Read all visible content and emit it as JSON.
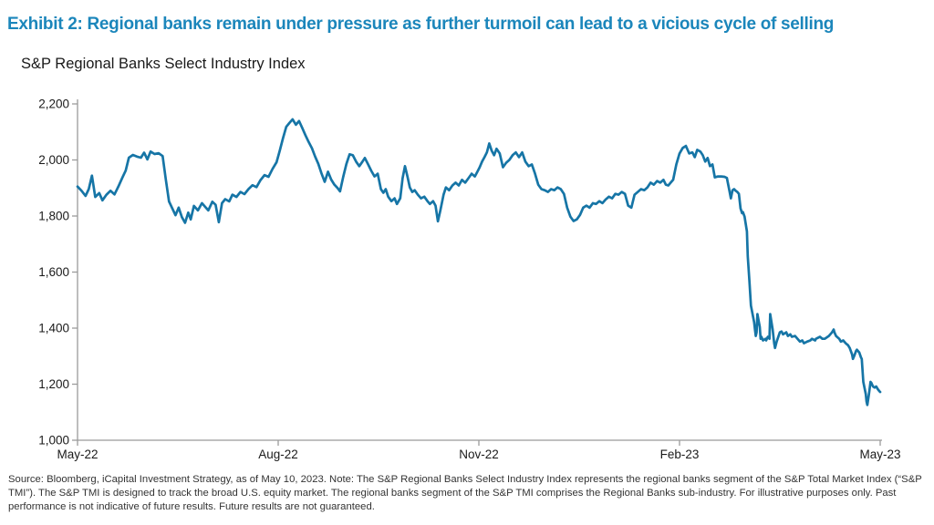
{
  "page": {
    "title": "Exhibit 2: Regional banks remain under pressure as further turmoil can lead to a vicious cycle of selling",
    "subtitle": "S&P Regional Banks Select Industry Index",
    "source_note": "Source: Bloomberg, iCapital Investment Strategy, as of May 10, 2023. Note: The S&P Regional Banks Select Industry Index represents the regional banks segment of the S&P Total Market Index (“S&P TMI”). The S&P TMI is designed to track the broad U.S. equity market. The regional banks segment of the S&P TMI comprises the Regional Banks sub-industry. For illustrative purposes only. Past performance is not indicative of future results. Future results are not guaranteed."
  },
  "colors": {
    "title_accent": "#1b86bb",
    "line": "#1675a6",
    "axis": "#9b9b9b",
    "tick_label": "#1a1a1a",
    "source_text": "#333333"
  },
  "chart_data": {
    "type": "line",
    "title": "S&P Regional Banks Select Industry Index",
    "xlabel": "",
    "ylabel": "",
    "grid": false,
    "legend": false,
    "x_axis": {
      "range_labels": [
        "May-22",
        "May-23"
      ],
      "ticks": [
        {
          "f": 0.0,
          "label": "May-22"
        },
        {
          "f": 0.25,
          "label": "Aug-22"
        },
        {
          "f": 0.5,
          "label": "Nov-22"
        },
        {
          "f": 0.75,
          "label": "Feb-23"
        },
        {
          "f": 1.0,
          "label": "May-23"
        }
      ]
    },
    "y_axis": {
      "min": 1000,
      "max": 2200,
      "ticks": [
        {
          "v": 2200,
          "label": "2,200"
        },
        {
          "v": 2000,
          "label": "2,000"
        },
        {
          "v": 1800,
          "label": "1,800"
        },
        {
          "v": 1600,
          "label": "1,600"
        },
        {
          "v": 1400,
          "label": "1,400"
        },
        {
          "v": 1200,
          "label": "1,200"
        },
        {
          "v": 1000,
          "label": "1,000"
        }
      ]
    },
    "series": [
      {
        "name": "S&P Regional Banks Select Industry Index",
        "color": "#1675a6",
        "x_unit": "fraction of time axis May-22 to May-23",
        "points": [
          [
            0.0,
            1905
          ],
          [
            0.005,
            1890
          ],
          [
            0.01,
            1872
          ],
          [
            0.014,
            1896
          ],
          [
            0.018,
            1944
          ],
          [
            0.022,
            1868
          ],
          [
            0.027,
            1882
          ],
          [
            0.031,
            1856
          ],
          [
            0.036,
            1876
          ],
          [
            0.041,
            1890
          ],
          [
            0.046,
            1877
          ],
          [
            0.051,
            1906
          ],
          [
            0.056,
            1938
          ],
          [
            0.06,
            1962
          ],
          [
            0.064,
            2008
          ],
          [
            0.069,
            2018
          ],
          [
            0.074,
            2012
          ],
          [
            0.079,
            2008
          ],
          [
            0.083,
            2026
          ],
          [
            0.087,
            2002
          ],
          [
            0.091,
            2030
          ],
          [
            0.096,
            2021
          ],
          [
            0.101,
            2024
          ],
          [
            0.106,
            2014
          ],
          [
            0.11,
            1930
          ],
          [
            0.114,
            1852
          ],
          [
            0.118,
            1828
          ],
          [
            0.122,
            1803
          ],
          [
            0.126,
            1830
          ],
          [
            0.13,
            1796
          ],
          [
            0.134,
            1776
          ],
          [
            0.138,
            1812
          ],
          [
            0.141,
            1788
          ],
          [
            0.145,
            1836
          ],
          [
            0.15,
            1820
          ],
          [
            0.155,
            1846
          ],
          [
            0.159,
            1833
          ],
          [
            0.163,
            1820
          ],
          [
            0.168,
            1851
          ],
          [
            0.172,
            1840
          ],
          [
            0.176,
            1778
          ],
          [
            0.18,
            1846
          ],
          [
            0.184,
            1860
          ],
          [
            0.189,
            1852
          ],
          [
            0.193,
            1876
          ],
          [
            0.198,
            1868
          ],
          [
            0.203,
            1886
          ],
          [
            0.208,
            1878
          ],
          [
            0.213,
            1896
          ],
          [
            0.218,
            1910
          ],
          [
            0.223,
            1903
          ],
          [
            0.228,
            1928
          ],
          [
            0.233,
            1946
          ],
          [
            0.238,
            1940
          ],
          [
            0.243,
            1968
          ],
          [
            0.248,
            1992
          ],
          [
            0.252,
            2034
          ],
          [
            0.256,
            2078
          ],
          [
            0.26,
            2118
          ],
          [
            0.264,
            2132
          ],
          [
            0.268,
            2145
          ],
          [
            0.272,
            2126
          ],
          [
            0.276,
            2139
          ],
          [
            0.28,
            2114
          ],
          [
            0.284,
            2088
          ],
          [
            0.288,
            2064
          ],
          [
            0.292,
            2042
          ],
          [
            0.296,
            2012
          ],
          [
            0.3,
            1986
          ],
          [
            0.304,
            1952
          ],
          [
            0.308,
            1922
          ],
          [
            0.312,
            1958
          ],
          [
            0.316,
            1930
          ],
          [
            0.32,
            1912
          ],
          [
            0.324,
            1900
          ],
          [
            0.327,
            1888
          ],
          [
            0.331,
            1940
          ],
          [
            0.335,
            1986
          ],
          [
            0.339,
            2020
          ],
          [
            0.343,
            2017
          ],
          [
            0.347,
            1994
          ],
          [
            0.351,
            1978
          ],
          [
            0.355,
            1994
          ],
          [
            0.358,
            2007
          ],
          [
            0.362,
            1984
          ],
          [
            0.366,
            1961
          ],
          [
            0.37,
            1941
          ],
          [
            0.374,
            1951
          ],
          [
            0.378,
            1896
          ],
          [
            0.381,
            1883
          ],
          [
            0.384,
            1896
          ],
          [
            0.387,
            1869
          ],
          [
            0.391,
            1853
          ],
          [
            0.395,
            1863
          ],
          [
            0.398,
            1843
          ],
          [
            0.402,
            1863
          ],
          [
            0.405,
            1935
          ],
          [
            0.408,
            1978
          ],
          [
            0.411,
            1941
          ],
          [
            0.414,
            1902
          ],
          [
            0.417,
            1886
          ],
          [
            0.42,
            1892
          ],
          [
            0.424,
            1876
          ],
          [
            0.428,
            1863
          ],
          [
            0.432,
            1869
          ],
          [
            0.436,
            1853
          ],
          [
            0.439,
            1843
          ],
          [
            0.443,
            1853
          ],
          [
            0.446,
            1837
          ],
          [
            0.449,
            1781
          ],
          [
            0.452,
            1820
          ],
          [
            0.456,
            1876
          ],
          [
            0.459,
            1902
          ],
          [
            0.463,
            1892
          ],
          [
            0.467,
            1909
          ],
          [
            0.471,
            1919
          ],
          [
            0.475,
            1909
          ],
          [
            0.479,
            1929
          ],
          [
            0.483,
            1919
          ],
          [
            0.487,
            1935
          ],
          [
            0.491,
            1951
          ],
          [
            0.495,
            1941
          ],
          [
            0.498,
            1957
          ],
          [
            0.501,
            1974
          ],
          [
            0.504,
            1994
          ],
          [
            0.507,
            2010
          ],
          [
            0.51,
            2027
          ],
          [
            0.513,
            2059
          ],
          [
            0.516,
            2033
          ],
          [
            0.519,
            2017
          ],
          [
            0.522,
            2040
          ],
          [
            0.526,
            2023
          ],
          [
            0.53,
            1974
          ],
          [
            0.534,
            1990
          ],
          [
            0.538,
            2000
          ],
          [
            0.542,
            2017
          ],
          [
            0.546,
            2027
          ],
          [
            0.55,
            2010
          ],
          [
            0.554,
            2027
          ],
          [
            0.558,
            1994
          ],
          [
            0.562,
            1978
          ],
          [
            0.566,
            1984
          ],
          [
            0.57,
            1951
          ],
          [
            0.574,
            1912
          ],
          [
            0.578,
            1896
          ],
          [
            0.582,
            1892
          ],
          [
            0.586,
            1886
          ],
          [
            0.59,
            1896
          ],
          [
            0.594,
            1892
          ],
          [
            0.598,
            1902
          ],
          [
            0.602,
            1896
          ],
          [
            0.606,
            1879
          ],
          [
            0.61,
            1830
          ],
          [
            0.614,
            1798
          ],
          [
            0.618,
            1782
          ],
          [
            0.622,
            1788
          ],
          [
            0.626,
            1804
          ],
          [
            0.63,
            1830
          ],
          [
            0.634,
            1837
          ],
          [
            0.638,
            1830
          ],
          [
            0.642,
            1846
          ],
          [
            0.646,
            1843
          ],
          [
            0.65,
            1853
          ],
          [
            0.654,
            1846
          ],
          [
            0.658,
            1859
          ],
          [
            0.662,
            1869
          ],
          [
            0.666,
            1863
          ],
          [
            0.67,
            1879
          ],
          [
            0.674,
            1876
          ],
          [
            0.678,
            1886
          ],
          [
            0.682,
            1879
          ],
          [
            0.686,
            1837
          ],
          [
            0.69,
            1830
          ],
          [
            0.694,
            1876
          ],
          [
            0.698,
            1886
          ],
          [
            0.702,
            1896
          ],
          [
            0.706,
            1892
          ],
          [
            0.71,
            1902
          ],
          [
            0.714,
            1919
          ],
          [
            0.718,
            1912
          ],
          [
            0.722,
            1925
          ],
          [
            0.726,
            1919
          ],
          [
            0.73,
            1929
          ],
          [
            0.733,
            1912
          ],
          [
            0.736,
            1909
          ],
          [
            0.739,
            1919
          ],
          [
            0.742,
            1929
          ],
          [
            0.746,
            1984
          ],
          [
            0.75,
            2023
          ],
          [
            0.754,
            2043
          ],
          [
            0.758,
            2050
          ],
          [
            0.762,
            2023
          ],
          [
            0.766,
            2027
          ],
          [
            0.769,
            2010
          ],
          [
            0.772,
            2036
          ],
          [
            0.776,
            2030
          ],
          [
            0.779,
            2017
          ],
          [
            0.782,
            1994
          ],
          [
            0.785,
            2007
          ],
          [
            0.788,
            1978
          ],
          [
            0.791,
            1984
          ],
          [
            0.794,
            1938
          ],
          [
            0.798,
            1941
          ],
          [
            0.802,
            1941
          ],
          [
            0.806,
            1940
          ],
          [
            0.809,
            1936
          ],
          [
            0.812,
            1892
          ],
          [
            0.814,
            1863
          ],
          [
            0.816,
            1892
          ],
          [
            0.818,
            1896
          ],
          [
            0.82,
            1890
          ],
          [
            0.822,
            1886
          ],
          [
            0.824,
            1879
          ],
          [
            0.826,
            1827
          ],
          [
            0.828,
            1810
          ],
          [
            0.829,
            1814
          ],
          [
            0.831,
            1798
          ],
          [
            0.834,
            1745
          ],
          [
            0.835,
            1657
          ],
          [
            0.837,
            1569
          ],
          [
            0.839,
            1480
          ],
          [
            0.843,
            1421
          ],
          [
            0.844,
            1395
          ],
          [
            0.845,
            1372
          ],
          [
            0.846,
            1385
          ],
          [
            0.847,
            1450
          ],
          [
            0.85,
            1404
          ],
          [
            0.851,
            1362
          ],
          [
            0.852,
            1369
          ],
          [
            0.854,
            1356
          ],
          [
            0.857,
            1362
          ],
          [
            0.858,
            1356
          ],
          [
            0.86,
            1369
          ],
          [
            0.862,
            1362
          ],
          [
            0.863,
            1450
          ],
          [
            0.866,
            1395
          ],
          [
            0.868,
            1346
          ],
          [
            0.869,
            1329
          ],
          [
            0.871,
            1352
          ],
          [
            0.875,
            1385
          ],
          [
            0.877,
            1388
          ],
          [
            0.879,
            1378
          ],
          [
            0.883,
            1385
          ],
          [
            0.885,
            1372
          ],
          [
            0.888,
            1378
          ],
          [
            0.89,
            1369
          ],
          [
            0.894,
            1372
          ],
          [
            0.897,
            1362
          ],
          [
            0.9,
            1352
          ],
          [
            0.903,
            1356
          ],
          [
            0.905,
            1346
          ],
          [
            0.909,
            1352
          ],
          [
            0.913,
            1356
          ],
          [
            0.915,
            1362
          ],
          [
            0.919,
            1356
          ],
          [
            0.92,
            1362
          ],
          [
            0.925,
            1369
          ],
          [
            0.928,
            1362
          ],
          [
            0.931,
            1362
          ],
          [
            0.936,
            1372
          ],
          [
            0.94,
            1385
          ],
          [
            0.942,
            1395
          ],
          [
            0.943,
            1385
          ],
          [
            0.945,
            1372
          ],
          [
            0.949,
            1362
          ],
          [
            0.951,
            1352
          ],
          [
            0.954,
            1356
          ],
          [
            0.957,
            1346
          ],
          [
            0.96,
            1339
          ],
          [
            0.962,
            1329
          ],
          [
            0.965,
            1306
          ],
          [
            0.966,
            1290
          ],
          [
            0.968,
            1303
          ],
          [
            0.97,
            1319
          ],
          [
            0.971,
            1323
          ],
          [
            0.974,
            1313
          ],
          [
            0.976,
            1296
          ],
          [
            0.977,
            1290
          ],
          [
            0.979,
            1208
          ],
          [
            0.982,
            1165
          ],
          [
            0.983,
            1139
          ],
          [
            0.984,
            1126
          ],
          [
            0.986,
            1165
          ],
          [
            0.988,
            1208
          ],
          [
            0.989,
            1205
          ],
          [
            0.991,
            1192
          ],
          [
            0.993,
            1188
          ],
          [
            0.995,
            1192
          ],
          [
            0.997,
            1182
          ],
          [
            0.999,
            1175
          ],
          [
            1.0,
            1172
          ]
        ]
      }
    ]
  }
}
